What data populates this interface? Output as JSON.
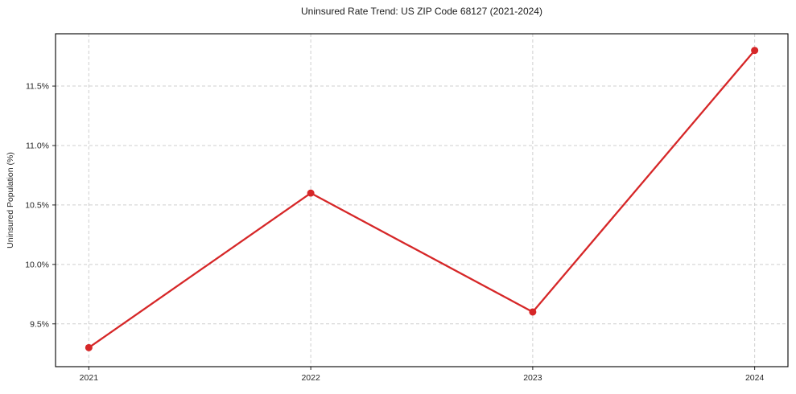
{
  "chart_data": {
    "type": "line",
    "title": "Uninsured Rate Trend: US ZIP Code 68127 (2021-2024)",
    "xlabel": "",
    "ylabel": "Uninsured Population (%)",
    "x": [
      2021,
      2022,
      2023,
      2024
    ],
    "x_tick_labels": [
      "2021",
      "2022",
      "2023",
      "2024"
    ],
    "series": [
      {
        "name": "uninsured-rate",
        "values": [
          9.3,
          10.6,
          9.6,
          11.8
        ]
      }
    ],
    "y_ticks": [
      9.5,
      10.0,
      10.5,
      11.0,
      11.5
    ],
    "y_tick_labels": [
      "9.5%",
      "10.0%",
      "10.5%",
      "11.0%",
      "11.5%"
    ],
    "xlim": [
      2020.85,
      2024.15
    ],
    "ylim": [
      9.14,
      11.94
    ],
    "grid": "both-dashed",
    "legend": "none",
    "colors": {
      "line": "#d62728",
      "marker": "#d62728",
      "grid": "#cfcfcf",
      "spine": "#000000",
      "tick": "#262626",
      "text": "#262626"
    }
  }
}
